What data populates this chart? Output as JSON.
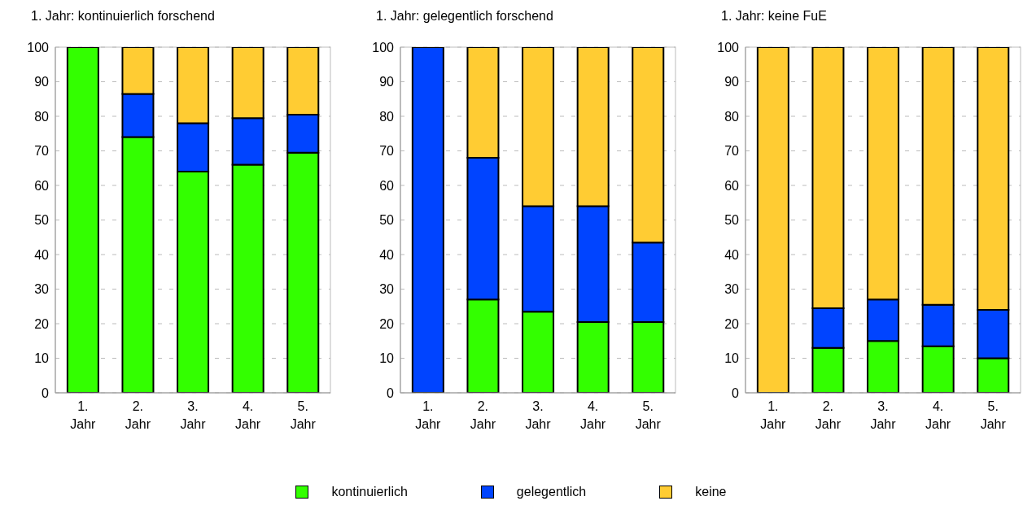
{
  "chart_data": [
    {
      "type": "bar",
      "title": "1. Jahr: kontinuierlich forschend",
      "stacked": true,
      "categories": [
        "1. Jahr",
        "2. Jahr",
        "3. Jahr",
        "4. Jahr",
        "5. Jahr"
      ],
      "ylim": [
        0,
        100
      ],
      "yticks": [
        0,
        10,
        20,
        30,
        40,
        50,
        60,
        70,
        80,
        90,
        100
      ],
      "grid": "y",
      "legend": "bottom",
      "series": [
        {
          "name": "kontinuierlich",
          "color": "#33ff00",
          "values": [
            100,
            74,
            64,
            66,
            69.5
          ]
        },
        {
          "name": "gelegentlich",
          "color": "#0044ff",
          "values": [
            0,
            12.5,
            14,
            13.5,
            11
          ]
        },
        {
          "name": "keine",
          "color": "#ffcc33",
          "values": [
            0,
            13.5,
            22,
            20.5,
            19.5
          ]
        }
      ]
    },
    {
      "type": "bar",
      "title": "1. Jahr: gelegentlich forschend",
      "stacked": true,
      "categories": [
        "1. Jahr",
        "2. Jahr",
        "3. Jahr",
        "4. Jahr",
        "5. Jahr"
      ],
      "ylim": [
        0,
        100
      ],
      "yticks": [
        0,
        10,
        20,
        30,
        40,
        50,
        60,
        70,
        80,
        90,
        100
      ],
      "grid": "y",
      "legend": "bottom",
      "series": [
        {
          "name": "kontinuierlich",
          "color": "#33ff00",
          "values": [
            0,
            27,
            23.5,
            20.5,
            20.5
          ]
        },
        {
          "name": "gelegentlich",
          "color": "#0044ff",
          "values": [
            100,
            41,
            30.5,
            33.5,
            23
          ]
        },
        {
          "name": "keine",
          "color": "#ffcc33",
          "values": [
            0,
            32,
            46,
            46,
            56.5
          ]
        }
      ]
    },
    {
      "type": "bar",
      "title": "1. Jahr: keine FuE",
      "stacked": true,
      "categories": [
        "1. Jahr",
        "2. Jahr",
        "3. Jahr",
        "4. Jahr",
        "5. Jahr"
      ],
      "ylim": [
        0,
        100
      ],
      "yticks": [
        0,
        10,
        20,
        30,
        40,
        50,
        60,
        70,
        80,
        90,
        100
      ],
      "grid": "y",
      "legend": "bottom",
      "series": [
        {
          "name": "kontinuierlich",
          "color": "#33ff00",
          "values": [
            0,
            13,
            15,
            13.5,
            10
          ]
        },
        {
          "name": "gelegentlich",
          "color": "#0044ff",
          "values": [
            0,
            11.5,
            12,
            12,
            14
          ]
        },
        {
          "name": "keine",
          "color": "#ffcc33",
          "values": [
            100,
            75.5,
            73,
            74.5,
            76
          ]
        }
      ]
    }
  ]
}
